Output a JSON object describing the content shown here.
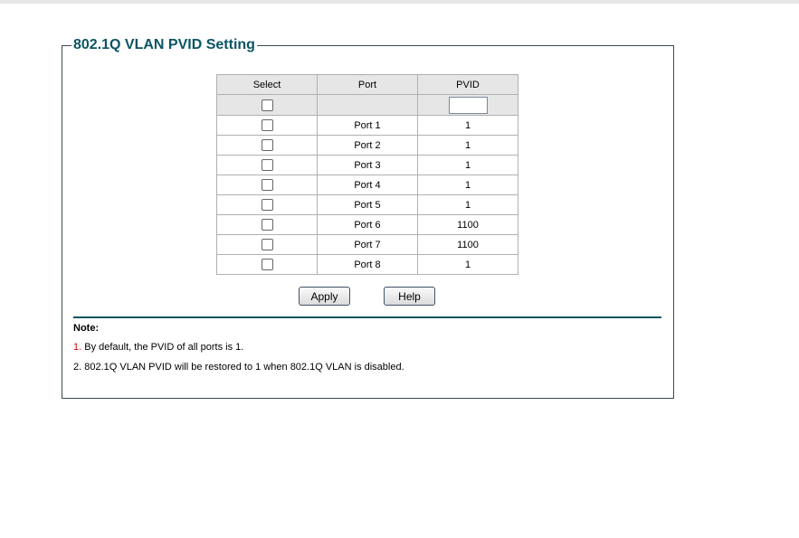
{
  "title": "802.1Q VLAN PVID Setting",
  "table": {
    "headers": [
      "Select",
      "Port",
      "PVID"
    ],
    "filter": {
      "pvid_value": ""
    },
    "rows": [
      {
        "port": "Port 1",
        "pvid": "1",
        "checked": false
      },
      {
        "port": "Port 2",
        "pvid": "1",
        "checked": false
      },
      {
        "port": "Port 3",
        "pvid": "1",
        "checked": false
      },
      {
        "port": "Port 4",
        "pvid": "1",
        "checked": false
      },
      {
        "port": "Port 5",
        "pvid": "1",
        "checked": false
      },
      {
        "port": "Port 6",
        "pvid": "1100",
        "checked": false
      },
      {
        "port": "Port 7",
        "pvid": "1100",
        "checked": false
      },
      {
        "port": "Port 8",
        "pvid": "1",
        "checked": false
      }
    ]
  },
  "buttons": {
    "apply": "Apply",
    "help": "Help"
  },
  "note": {
    "label": "Note:",
    "items": [
      {
        "num": "1.",
        "text": " By default, the PVID of all ports is 1."
      },
      {
        "num": "2.",
        "text": " 802.1Q VLAN PVID will be restored to 1 when 802.1Q VLAN is disabled."
      }
    ]
  },
  "colors": {
    "accent": "#0b5563",
    "note_number": "#dd0000"
  }
}
